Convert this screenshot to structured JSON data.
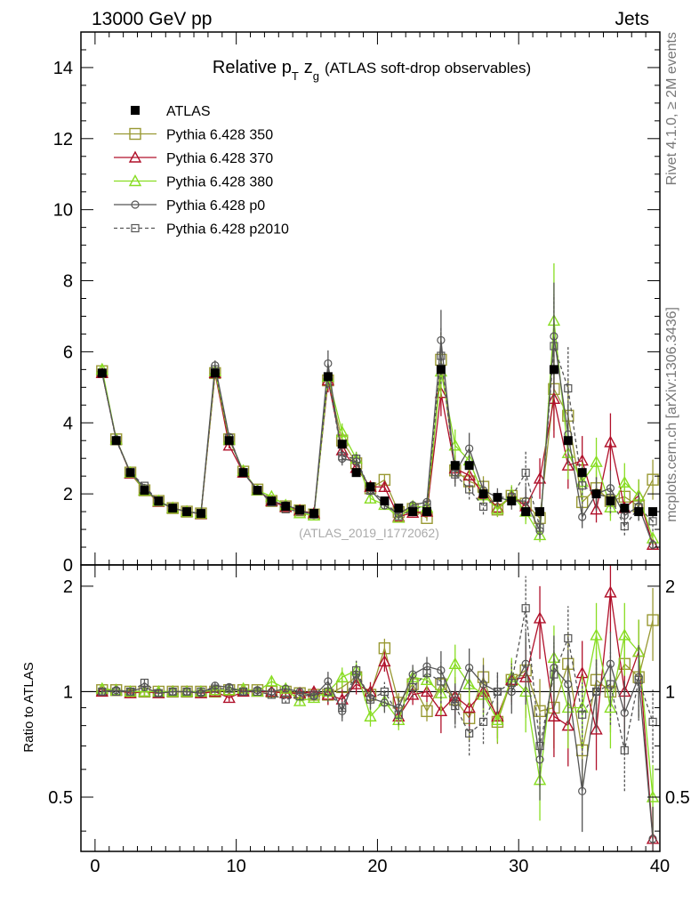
{
  "header": {
    "left": "13000 GeV pp",
    "right": "Jets"
  },
  "title": {
    "main": "Relative p",
    "sub": "T",
    "var": "z",
    "varsub": "g",
    "rest": "(ATLAS soft-drop observables)"
  },
  "side_labels": {
    "rivet": "Rivet 4.1.0, ≥ 2M events",
    "mcplots": "mcplots.cern.ch [arXiv:1306.3436]"
  },
  "watermark": "(ATLAS_2019_I1772062)",
  "ratio_ylabel": "Ratio to ATLAS",
  "colors": {
    "p350": "#999933",
    "p370": "#b0102a",
    "p380": "#88dd22",
    "p0": "#555555",
    "p2010": "#555555",
    "data": "#000000"
  },
  "chart_data": {
    "type": "line",
    "xlim": [
      -1,
      40
    ],
    "main_ylim": [
      0,
      15
    ],
    "ratio_ylim": [
      0.35,
      2.3
    ],
    "x_ticks": [
      "0",
      "10",
      "20",
      "30",
      "40"
    ],
    "main_y_ticks": [
      "0",
      "2",
      "4",
      "6",
      "8",
      "10",
      "12",
      "14"
    ],
    "ratio_y_ticks": [
      "0.5",
      "1",
      "2"
    ],
    "x": [
      0.5,
      1.5,
      2.5,
      3.5,
      4.5,
      5.5,
      6.5,
      7.5,
      8.5,
      9.5,
      10.5,
      11.5,
      12.5,
      13.5,
      14.5,
      15.5,
      16.5,
      17.5,
      18.5,
      19.5,
      20.5,
      21.5,
      22.5,
      23.5,
      24.5,
      25.5,
      26.5,
      27.5,
      28.5,
      29.5,
      30.5,
      31.5,
      32.5,
      33.5,
      34.5,
      35.5,
      36.5,
      37.5,
      38.5,
      39.5
    ],
    "data": [
      5.4,
      3.5,
      2.6,
      2.1,
      1.8,
      1.6,
      1.5,
      1.45,
      5.4,
      3.5,
      2.6,
      2.1,
      1.8,
      1.65,
      1.55,
      1.45,
      5.3,
      3.4,
      2.6,
      2.2,
      1.8,
      1.6,
      1.5,
      1.5,
      5.5,
      2.8,
      2.8,
      2.0,
      1.9,
      1.8,
      1.5,
      1.5,
      5.5,
      3.5,
      2.6,
      2.0,
      1.8,
      1.6,
      1.5,
      1.5
    ],
    "legend": [
      {
        "key": "data",
        "label": "ATLAS"
      },
      {
        "key": "p350",
        "label": "Pythia 6.428 350"
      },
      {
        "key": "p370",
        "label": "Pythia 6.428 370"
      },
      {
        "key": "p380",
        "label": "Pythia 6.428 380"
      },
      {
        "key": "p0",
        "label": "Pythia 6.428 p0"
      },
      {
        "key": "p2010",
        "label": "Pythia 6.428 p2010"
      }
    ],
    "series": [
      {
        "key": "p350",
        "name": "Pythia 6.428 350",
        "ratio": [
          1.01,
          1.01,
          1.0,
          1.0,
          1.0,
          1.0,
          1.0,
          1.0,
          1.0,
          1.01,
          1.01,
          1.01,
          1.0,
          1.0,
          0.99,
          0.98,
          0.98,
          1.03,
          1.1,
          0.98,
          1.33,
          0.93,
          1.05,
          0.88,
          1.05,
          0.95,
          0.84,
          1.1,
          0.82,
          1.08,
          1.15,
          0.88,
          0.9,
          1.2,
          0.68,
          1.08,
          1.0,
          1.2,
          1.1,
          1.6
        ]
      },
      {
        "key": "p370",
        "name": "Pythia 6.428 370",
        "ratio": [
          1.0,
          1.01,
          0.99,
          1.0,
          0.99,
          1.0,
          1.0,
          0.99,
          1.0,
          0.96,
          1.0,
          1.0,
          1.0,
          0.99,
          0.99,
          1.0,
          0.98,
          0.95,
          1.05,
          1.0,
          1.22,
          0.85,
          0.98,
          1.0,
          0.88,
          0.97,
          0.9,
          1.0,
          0.85,
          1.08,
          1.1,
          1.62,
          0.85,
          0.8,
          1.13,
          0.78,
          1.92,
          1.0,
          1.3,
          0.38
        ]
      },
      {
        "key": "p380",
        "name": "Pythia 6.428 380",
        "ratio": [
          1.02,
          1.01,
          1.0,
          1.0,
          1.0,
          1.0,
          1.0,
          1.0,
          1.01,
          1.01,
          1.02,
          1.0,
          1.07,
          1.02,
          0.94,
          0.96,
          1.0,
          1.1,
          1.15,
          0.85,
          0.94,
          0.83,
          1.1,
          1.08,
          0.99,
          1.2,
          1.05,
          0.98,
          0.83,
          1.1,
          1.0,
          0.56,
          1.25,
          0.9,
          0.9,
          1.45,
          0.9,
          1.45,
          1.3,
          0.5
        ]
      },
      {
        "key": "p0",
        "name": "Pythia 6.428 p0",
        "ratio": [
          1.0,
          1.01,
          1.0,
          1.03,
          0.99,
          1.0,
          1.0,
          0.99,
          1.04,
          1.03,
          1.0,
          1.01,
          1.0,
          1.02,
          1.0,
          0.97,
          1.07,
          0.88,
          1.12,
          0.96,
          0.93,
          0.9,
          1.12,
          1.18,
          1.15,
          0.93,
          1.17,
          1.05,
          1.0,
          1.0,
          1.2,
          0.64,
          1.17,
          1.05,
          0.52,
          1.0,
          1.2,
          0.87,
          1.1,
          0.38
        ]
      },
      {
        "key": "p2010",
        "name": "Pythia 6.428 p2010",
        "ratio": [
          1.0,
          1.0,
          1.0,
          1.06,
          0.99,
          1.0,
          1.0,
          1.0,
          1.02,
          1.02,
          1.0,
          1.0,
          0.98,
          0.95,
          0.97,
          0.98,
          1.0,
          0.9,
          1.15,
          0.95,
          1.0,
          0.86,
          1.03,
          1.13,
          1.07,
          0.91,
          0.76,
          0.82,
          1.0,
          1.06,
          1.73,
          0.7,
          1.12,
          1.42,
          0.86,
          1.0,
          1.05,
          0.68,
          1.08,
          0.82
        ]
      }
    ]
  }
}
